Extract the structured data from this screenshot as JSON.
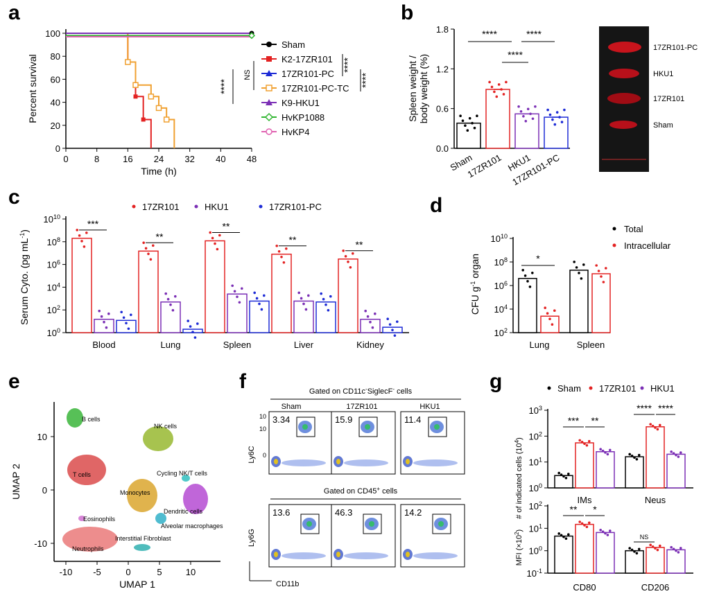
{
  "panels": {
    "a": {
      "letter": "a",
      "ylabel": "Percent survival",
      "xlabel": "Time (h)",
      "yticks": [
        "0",
        "20",
        "40",
        "60",
        "80",
        "100"
      ],
      "xticks": [
        "0",
        "8",
        "16",
        "24",
        "32",
        "40",
        "48"
      ],
      "legend": [
        "Sham",
        "K2-17ZR101",
        "17ZR101-PC",
        "17ZR101-PC-TC",
        "K9-HKU1",
        "HvKP1088",
        "HvKP4"
      ],
      "sig_labels": [
        "****",
        "NS",
        "****",
        "****"
      ]
    },
    "b": {
      "letter": "b",
      "ylabel_line1": "Spleen weight /",
      "ylabel_line2": "body weight (%)",
      "yticks": [
        "0.0",
        "0.6",
        "1.2",
        "1.8"
      ],
      "categories": [
        "Sham",
        "17ZR101",
        "HKU1",
        "17ZR101-PC"
      ],
      "sig_labels": [
        "****",
        "****",
        "****"
      ],
      "photo_labels": [
        "17ZR101-PC",
        "HKU1",
        "17ZR101",
        "Sham"
      ]
    },
    "c": {
      "letter": "c",
      "ylabel": "Serum Cyto. (pg mL",
      "ylabel_sup": "-1",
      "ylabel_end": ")",
      "legend": [
        "17ZR101",
        "HKU1",
        "17ZR101-PC"
      ],
      "categories": [
        "Blood",
        "Lung",
        "Spleen",
        "Liver",
        "Kidney"
      ],
      "yticks": [
        "10",
        "10",
        "10",
        "10",
        "10",
        "10"
      ],
      "ytick_exps": [
        "0",
        "2",
        "4",
        "6",
        "8",
        "10"
      ],
      "sig_labels": [
        "***",
        "**",
        "**",
        "**",
        "**"
      ]
    },
    "d": {
      "letter": "d",
      "ylabel": "CFU g",
      "ylabel_sup": "-1",
      "ylabel_end": " organ",
      "legend": [
        "Total",
        "Intracellular"
      ],
      "categories": [
        "Lung",
        "Spleen"
      ],
      "yticks": [
        "10",
        "10",
        "10",
        "10",
        "10"
      ],
      "ytick_exps": [
        "2",
        "4",
        "6",
        "8",
        "10"
      ],
      "sig_labels": [
        "*"
      ]
    },
    "e": {
      "letter": "e",
      "xlabel": "UMAP 1",
      "ylabel": "UMAP 2",
      "xticks": [
        "-10",
        "-5",
        "0",
        "5",
        "10"
      ],
      "yticks": [
        "10",
        "0",
        "-10"
      ],
      "clusters": [
        "B cells",
        "NK cells",
        "T cells",
        "Cycling NK/T cells",
        "Monocytes",
        "Dendritic cells",
        "Eosinophils",
        "Alveolar macrophages",
        "Interstitial Fibroblast",
        "Neutrophils"
      ]
    },
    "f": {
      "letter": "f",
      "gate_top": "Gated on CD11c",
      "gate_top_sup1": "-",
      "gate_top_mid": "SiglecF",
      "gate_top_sup2": "-",
      "gate_top_end": " cells",
      "gate_bottom": "Gated on CD45",
      "gate_bottom_sup": "+",
      "gate_bottom_end": " cells",
      "columns": [
        "Sham",
        "17ZR101",
        "HKU1"
      ],
      "top_values": [
        "3.34",
        "15.9",
        "11.4"
      ],
      "bottom_values": [
        "13.6",
        "46.3",
        "14.2"
      ],
      "top_ylabel": "Ly6C",
      "bottom_ylabel": "Ly6G",
      "xlabel": "CD11b"
    },
    "g": {
      "letter": "g",
      "legend": [
        "Sham",
        "17ZR101",
        "HKU1"
      ],
      "top_ylabel": "# of indicated cells (10",
      "top_ylabel_sup": "4",
      "top_ylabel_end": ")",
      "bottom_ylabel": "MFI (×10",
      "bottom_ylabel_sup": "2",
      "bottom_ylabel_end": ")",
      "top_categories": [
        "IMs",
        "Neus"
      ],
      "bottom_categories": [
        "CD80",
        "CD206"
      ],
      "top_sig": [
        "***",
        "**",
        "****",
        "****"
      ],
      "bottom_sig": [
        "**",
        "*",
        "NS"
      ]
    }
  },
  "chart_data": [
    {
      "type": "line",
      "panel": "a",
      "xlabel": "Time (h)",
      "ylabel": "Percent survival",
      "xlim": [
        0,
        48
      ],
      "ylim": [
        0,
        100
      ],
      "series": [
        {
          "name": "Sham",
          "x": [
            0,
            48
          ],
          "y": [
            100,
            100
          ]
        },
        {
          "name": "K2-17ZR101",
          "x": [
            0,
            16,
            16,
            18,
            18,
            20,
            20,
            22,
            22
          ],
          "y": [
            100,
            100,
            75,
            75,
            45,
            45,
            25,
            25,
            0
          ]
        },
        {
          "name": "17ZR101-PC",
          "x": [
            0,
            48
          ],
          "y": [
            100,
            100
          ]
        },
        {
          "name": "17ZR101-PC-TC",
          "x": [
            0,
            16,
            16,
            18,
            18,
            22,
            22,
            24,
            24,
            26,
            26,
            28,
            28
          ],
          "y": [
            100,
            100,
            75,
            75,
            55,
            55,
            45,
            45,
            35,
            35,
            25,
            25,
            0
          ]
        },
        {
          "name": "K9-HKU1",
          "x": [
            0,
            48
          ],
          "y": [
            100,
            100
          ]
        },
        {
          "name": "HvKP1088",
          "x": [
            0,
            48
          ],
          "y": [
            98,
            98
          ]
        },
        {
          "name": "HvKP4",
          "x": [
            0,
            48
          ],
          "y": [
            97,
            97
          ]
        }
      ],
      "colors": [
        "#000000",
        "#e32222",
        "#1d2bd6",
        "#f0a030",
        "#7b2fb5",
        "#2fb52f",
        "#e060b0"
      ]
    },
    {
      "type": "bar",
      "panel": "b",
      "categories": [
        "Sham",
        "17ZR101",
        "HKU1",
        "17ZR101-PC"
      ],
      "values": [
        0.38,
        0.89,
        0.52,
        0.47
      ],
      "ylim": [
        0,
        1.8
      ],
      "colors": [
        "#000000",
        "#e32222",
        "#7b2fb5",
        "#1d2bd6"
      ]
    },
    {
      "type": "bar",
      "panel": "c",
      "scale": "log",
      "categories": [
        "Blood",
        "Lung",
        "Spleen",
        "Liver",
        "Kidney"
      ],
      "series": [
        {
          "name": "17ZR101",
          "values": [
            200000000,
            15000000,
            120000000,
            8000000,
            3000000
          ]
        },
        {
          "name": "HKU1",
          "values": [
            15,
            500,
            2500,
            600,
            15
          ]
        },
        {
          "name": "17ZR101-PC",
          "values": [
            12,
            2,
            600,
            500,
            3
          ]
        }
      ],
      "ylim": [
        1,
        10000000000
      ],
      "colors": [
        "#e32222",
        "#7b2fb5",
        "#1d2bd6"
      ]
    },
    {
      "type": "bar",
      "panel": "d",
      "scale": "log",
      "categories": [
        "Lung",
        "Spleen"
      ],
      "series": [
        {
          "name": "Total",
          "values": [
            4000000,
            20000000
          ]
        },
        {
          "name": "Intracellular",
          "values": [
            2500,
            10000000
          ]
        }
      ],
      "ylim": [
        100,
        10000000000
      ],
      "colors": [
        "#000000",
        "#e32222"
      ]
    },
    {
      "type": "bar",
      "panel": "g-top",
      "scale": "log",
      "categories": [
        "IMs",
        "Neus"
      ],
      "series": [
        {
          "name": "Sham",
          "values": [
            3,
            16
          ]
        },
        {
          "name": "17ZR101",
          "values": [
            55,
            230
          ]
        },
        {
          "name": "HKU1",
          "values": [
            25,
            20
          ]
        }
      ],
      "ylim": [
        1,
        1000
      ],
      "colors": [
        "#000000",
        "#e32222",
        "#7b2fb5"
      ]
    },
    {
      "type": "bar",
      "panel": "g-bottom",
      "scale": "log",
      "categories": [
        "CD80",
        "CD206"
      ],
      "series": [
        {
          "name": "Sham",
          "values": [
            4.5,
            1.0
          ]
        },
        {
          "name": "17ZR101",
          "values": [
            15,
            1.4
          ]
        },
        {
          "name": "HKU1",
          "values": [
            6.5,
            1.1
          ]
        }
      ],
      "ylim": [
        0.1,
        100
      ],
      "colors": [
        "#000000",
        "#e32222",
        "#7b2fb5"
      ]
    }
  ]
}
